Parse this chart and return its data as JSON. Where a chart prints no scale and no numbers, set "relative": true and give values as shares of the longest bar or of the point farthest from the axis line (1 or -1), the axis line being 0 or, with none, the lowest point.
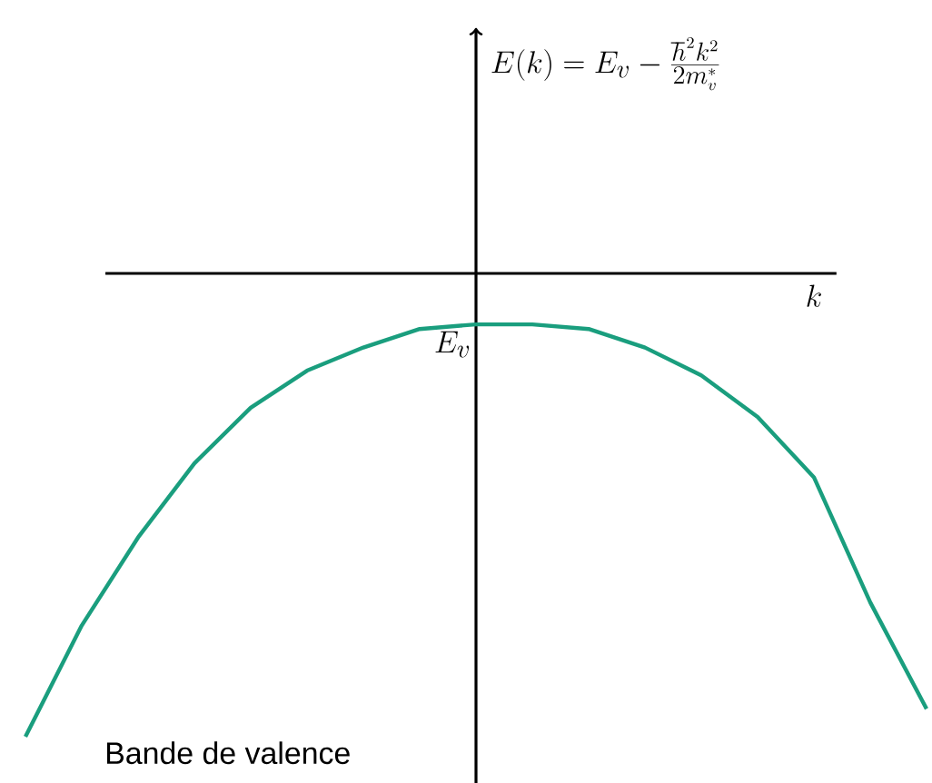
{
  "chart_data": {
    "type": "line",
    "relative": true,
    "xlabel": "k",
    "categories": [
      null,
      null,
      null,
      null,
      null,
      null,
      null,
      null,
      null,
      null,
      null,
      null,
      null,
      null,
      null,
      null,
      null
    ],
    "series": [
      {
        "color": "#1a9e7e",
        "values": [
          -1,
          -0.76,
          -0.57,
          -0.41,
          -0.29,
          -0.21,
          -0.16,
          -0.12,
          -0.11,
          -0.11,
          -0.12,
          -0.16,
          -0.22,
          -0.31,
          -0.44,
          -0.71,
          -0.94
        ]
      }
    ],
    "annotations": [
      "E(k) = E_v - \\frac{\\hbar^2 k^2}{2m_v^*}",
      "E_v",
      "Bande de valence"
    ]
  }
}
